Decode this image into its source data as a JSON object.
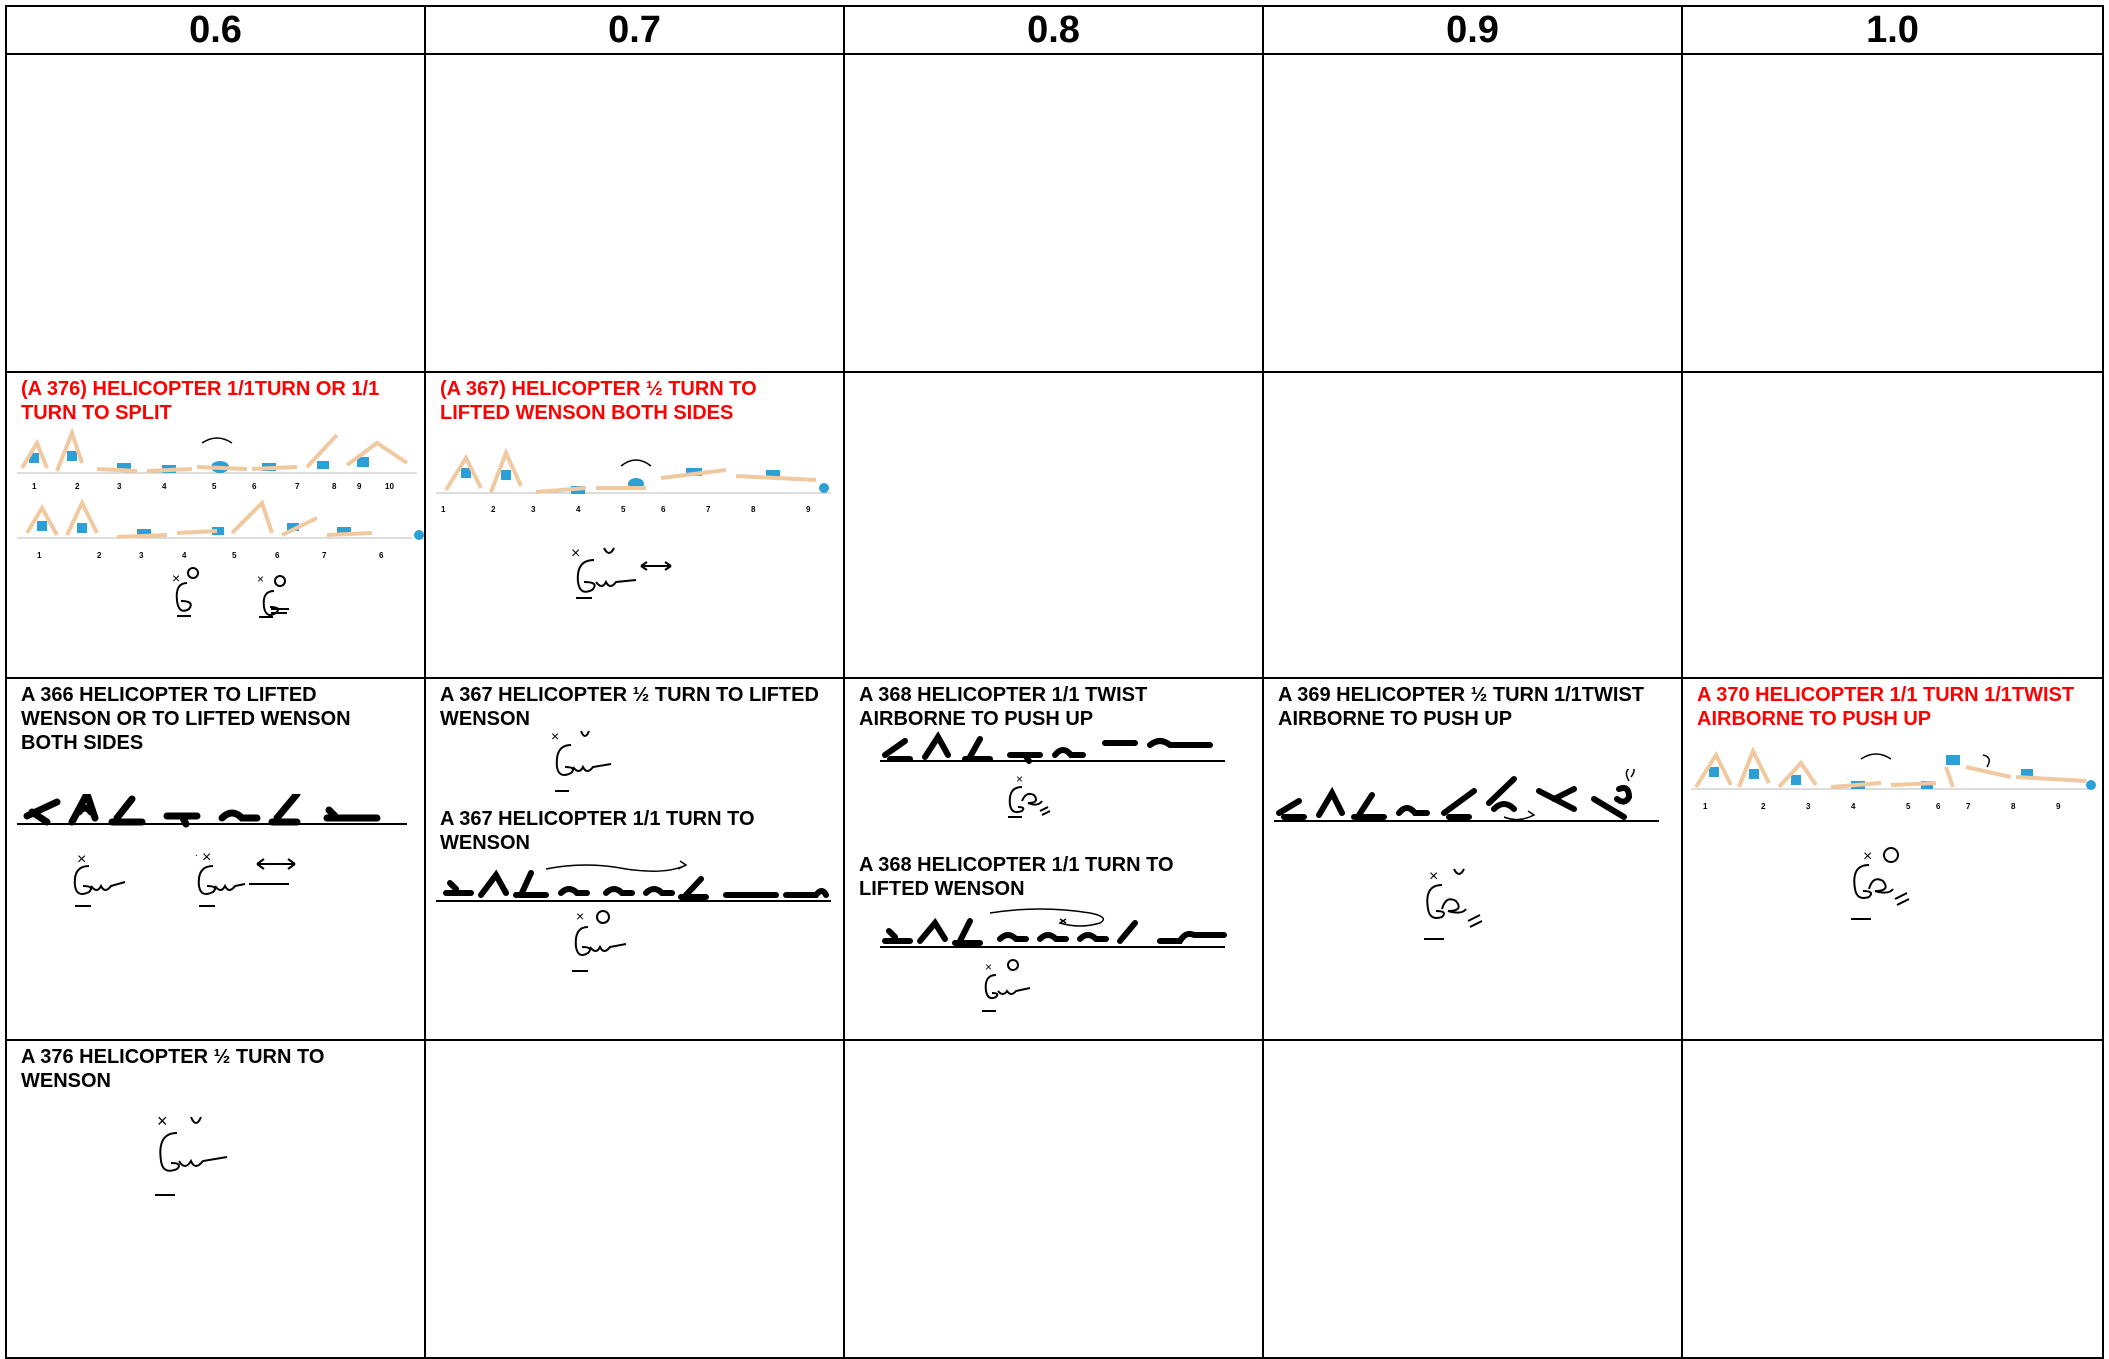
{
  "headers": [
    "0.6",
    "0.7",
    "0.8",
    "0.9",
    "1.0"
  ],
  "colors": {
    "highlight": "#ff0000",
    "text": "#000000",
    "figure_blue": "#2b9fd6",
    "skin": "#f0c9a0"
  },
  "rows": {
    "r2": {
      "c1": {
        "caption": "(A 376)  HELICOPTER 1/1TURN OR 1/1 TURN TO SPLIT",
        "numbers_a": [
          "1",
          "2",
          "3",
          "4",
          "5",
          "6",
          "7",
          "8",
          "9",
          "10"
        ],
        "numbers_b": [
          "1",
          "2",
          "3",
          "4",
          "5",
          "6",
          "7",
          "6"
        ]
      },
      "c2": {
        "caption": "(A 367)  HELICOPTER ½ TURN TO LIFTED WENSON BOTH SIDES",
        "numbers": [
          "1",
          "2",
          "3",
          "4",
          "5",
          "6",
          "7",
          "8",
          "9"
        ]
      }
    },
    "r3": {
      "c1": {
        "caption": "A 366  HELICOPTER TO LIFTED WENSON OR TO LIFTED WENSON BOTH SIDES"
      },
      "c2": {
        "caption_a": "A 367  HELICOPTER ½ TURN TO LIFTED WENSON",
        "caption_b": "A 367  HELICOPTER 1/1 TURN TO WENSON"
      },
      "c3": {
        "caption_a": "A 368  HELICOPTER 1/1 TWIST AIRBORNE TO  PUSH UP",
        "caption_b": "A 368  HELICOPTER 1/1 TURN TO  LIFTED WENSON"
      },
      "c4": {
        "caption": "A 369  HELICOPTER ½ TURN 1/1TWIST AIRBORNE TO PUSH UP"
      },
      "c5": {
        "caption": "A 370  HELICOPTER 1/1 TURN 1/1TWIST AIRBORNE TO PUSH UP",
        "numbers": [
          "1",
          "2",
          "3",
          "4",
          "5",
          "6",
          "7",
          "8",
          "9"
        ]
      }
    },
    "r4": {
      "c1": {
        "caption": "A 376  HELICOPTER ½ TURN TO WENSON"
      }
    }
  }
}
